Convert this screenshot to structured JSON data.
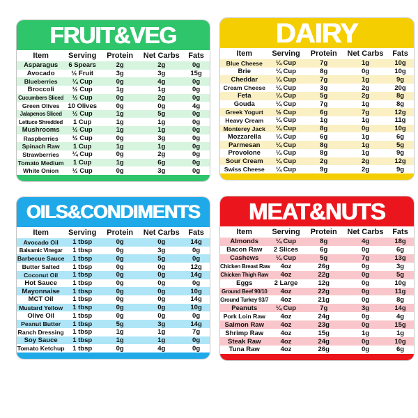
{
  "card_border_color": "#c6c6c6",
  "text_color": "#111111",
  "title_color": "#ffffff",
  "chart_data": [
    {
      "type": "table",
      "title": "FRUIT&VEG",
      "header_color": "#2ec56b",
      "row_tint": "#d7f4df",
      "columns": [
        "Item",
        "Serving",
        "Protein",
        "Net Carbs",
        "Fats"
      ],
      "rows": [
        [
          "Asparagus",
          "6 Spears",
          "2g",
          "2g",
          "0g"
        ],
        [
          "Avocado",
          "½ Fruit",
          "3g",
          "3g",
          "15g"
        ],
        [
          "Blueberries",
          "¼ Cup",
          "0g",
          "4g",
          "0g"
        ],
        [
          "Broccoli",
          "½ Cup",
          "1g",
          "1g",
          "0g"
        ],
        [
          "Cucumbers Sliced",
          "½ Cup",
          "0g",
          "2g",
          "0g"
        ],
        [
          "Green Olives",
          "10 Olives",
          "0g",
          "0g",
          "4g"
        ],
        [
          "Jalapenos Sliced",
          "½ Cup",
          "1g",
          "5g",
          "0g"
        ],
        [
          "Lettuce Shredded",
          "1 Cup",
          "1g",
          "1g",
          "0g"
        ],
        [
          "Mushrooms",
          "½ Cup",
          "1g",
          "1g",
          "0g"
        ],
        [
          "Raspberries",
          "½ Cup",
          "0g",
          "3g",
          "0g"
        ],
        [
          "Spinach Raw",
          "1 Cup",
          "1g",
          "1g",
          "0g"
        ],
        [
          "Strawberries",
          "¼ Cup",
          "0g",
          "2g",
          "0g"
        ],
        [
          "Tomato Medium",
          "1 Cup",
          "1g",
          "6g",
          "0g"
        ],
        [
          "White Onion",
          "½ Cup",
          "0g",
          "3g",
          "0g"
        ]
      ]
    },
    {
      "type": "table",
      "title": "DAIRY",
      "header_color": "#f5ce02",
      "row_tint": "#faf0c4",
      "columns": [
        "Item",
        "Serving",
        "Protein",
        "Net Carbs",
        "Fats"
      ],
      "rows": [
        [
          "Blue Cheese",
          "¼ Cup",
          "7g",
          "1g",
          "10g"
        ],
        [
          "Brie",
          "¼ Cup",
          "8g",
          "0g",
          "10g"
        ],
        [
          "Cheddar",
          "¼ Cup",
          "7g",
          "1g",
          "9g"
        ],
        [
          "Cream Cheese",
          "¼ Cup",
          "3g",
          "2g",
          "20g"
        ],
        [
          "Feta",
          "¼ Cup",
          "5g",
          "2g",
          "8g"
        ],
        [
          "Gouda",
          "¼ Cup",
          "7g",
          "1g",
          "8g"
        ],
        [
          "Greek Yogurt",
          "½ Cup",
          "6g",
          "7g",
          "12g"
        ],
        [
          "Heavy Cream",
          "¼ Cup",
          "1g",
          "1g",
          "11g"
        ],
        [
          "Monterey Jack",
          "¼ Cup",
          "8g",
          "0g",
          "10g"
        ],
        [
          "Mozzarella",
          "¼ Cup",
          "6g",
          "1g",
          "6g"
        ],
        [
          "Parmesan",
          "¼ Cup",
          "8g",
          "1g",
          "5g"
        ],
        [
          "Provolone",
          "¼ Cup",
          "8g",
          "1g",
          "9g"
        ],
        [
          "Sour Cream",
          "¼ Cup",
          "2g",
          "2g",
          "12g"
        ],
        [
          "Swiss Cheese",
          "¼ Cup",
          "9g",
          "2g",
          "9g"
        ]
      ]
    },
    {
      "type": "table",
      "title": "OILS&CONDIMENTS",
      "header_color": "#1fa9e8",
      "row_tint": "#aee5f7",
      "columns": [
        "Item",
        "Serving",
        "Protein",
        "Net Carbs",
        "Fats"
      ],
      "rows": [
        [
          "Avocado Oil",
          "1 tbsp",
          "0g",
          "0g",
          "14g"
        ],
        [
          "Balsamic Vinegar",
          "1 tbsp",
          "0g",
          "3g",
          "0g"
        ],
        [
          "Barbecue Sauce",
          "1 tbsp",
          "0g",
          "5g",
          "0g"
        ],
        [
          "Butter Salted",
          "1 tbsp",
          "0g",
          "0g",
          "12g"
        ],
        [
          "Coconut Oil",
          "1 tbsp",
          "0g",
          "0g",
          "14g"
        ],
        [
          "Hot Sauce",
          "1 tbsp",
          "0g",
          "0g",
          "0g"
        ],
        [
          "Mayonnaise",
          "1 tbsp",
          "0g",
          "0g",
          "10g"
        ],
        [
          "MCT Oil",
          "1 tbsp",
          "0g",
          "0g",
          "14g"
        ],
        [
          "Mustard Yellow",
          "1 tbsp",
          "0g",
          "0g",
          "10g"
        ],
        [
          "Olive Oil",
          "1 tbsp",
          "0g",
          "0g",
          "0g"
        ],
        [
          "Peanut Butter",
          "1 tbsp",
          "5g",
          "3g",
          "14g"
        ],
        [
          "Ranch Dressing",
          "1 tbsp",
          "1g",
          "1g",
          "7g"
        ],
        [
          "Soy Sauce",
          "1 tbsp",
          "1g",
          "1g",
          "0g"
        ],
        [
          "Tomato Ketchup",
          "1 tbsp",
          "0g",
          "4g",
          "0g"
        ]
      ]
    },
    {
      "type": "table",
      "title": "MEAT&NUTS",
      "header_color": "#eb161d",
      "row_tint": "#f9c7cb",
      "columns": [
        "Item",
        "Serving",
        "Protein",
        "Net Carbs",
        "Fats"
      ],
      "rows": [
        [
          "Almonds",
          "¼ Cup",
          "8g",
          "4g",
          "18g"
        ],
        [
          "Bacon Raw",
          "2 Slices",
          "6g",
          "0g",
          "6g"
        ],
        [
          "Cashews",
          "¼ Cup",
          "5g",
          "7g",
          "13g"
        ],
        [
          "Chicken Breast Raw",
          "4oz",
          "26g",
          "0g",
          "3g"
        ],
        [
          "Chicken Thigh Raw",
          "4oz",
          "22g",
          "0g",
          "5g"
        ],
        [
          "Eggs",
          "2 Large",
          "12g",
          "0g",
          "10g"
        ],
        [
          "Ground Beef 90/10",
          "4oz",
          "22g",
          "0g",
          "11g"
        ],
        [
          "Ground Turkey 93/7",
          "4oz",
          "21g",
          "0g",
          "8g"
        ],
        [
          "Peanuts",
          "¼ Cup",
          "7g",
          "3g",
          "14g"
        ],
        [
          "Pork Loin Raw",
          "4oz",
          "24g",
          "0g",
          "4g"
        ],
        [
          "Salmon Raw",
          "4oz",
          "23g",
          "0g",
          "15g"
        ],
        [
          "Shrimp Raw",
          "4oz",
          "15g",
          "1g",
          "1g"
        ],
        [
          "Steak Raw",
          "4oz",
          "24g",
          "0g",
          "10g"
        ],
        [
          "Tuna Raw",
          "4oz",
          "26g",
          "0g",
          "6g"
        ]
      ]
    }
  ]
}
